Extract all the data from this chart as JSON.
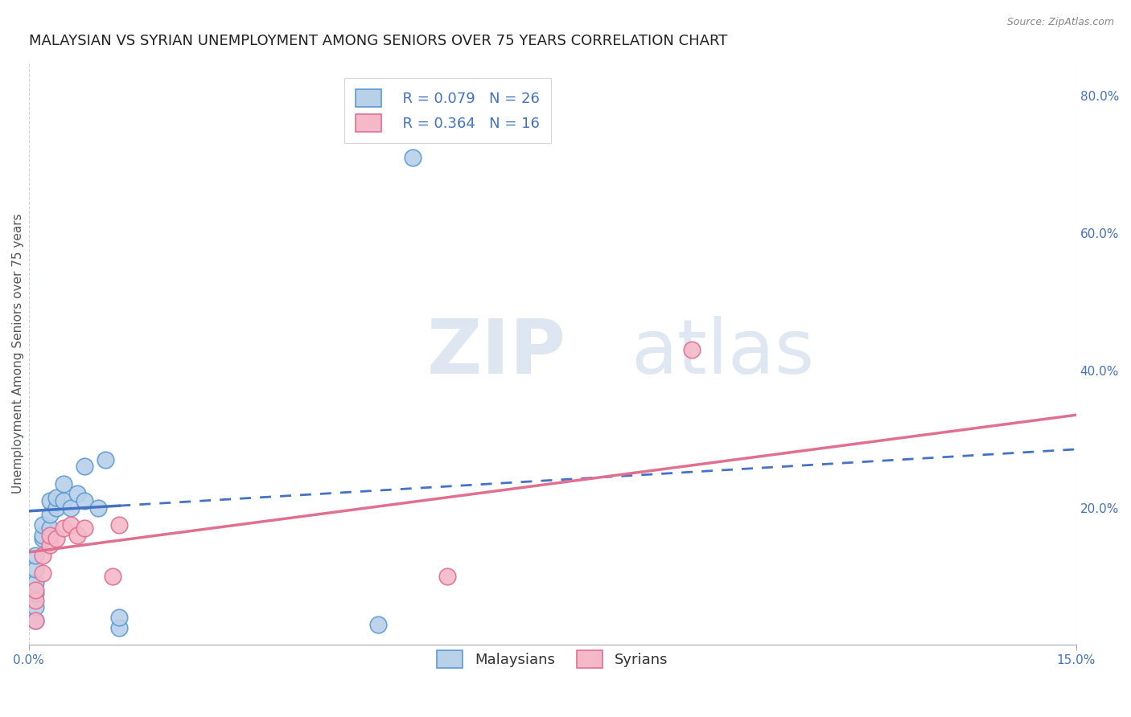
{
  "title": "MALAYSIAN VS SYRIAN UNEMPLOYMENT AMONG SENIORS OVER 75 YEARS CORRELATION CHART",
  "source": "Source: ZipAtlas.com",
  "ylabel": "Unemployment Among Seniors over 75 years",
  "watermark_zip": "ZIP",
  "watermark_atlas": "atlas",
  "xlim": [
    0.0,
    0.15
  ],
  "ylim": [
    0.0,
    0.85
  ],
  "xtick_labels": [
    "0.0%",
    "15.0%"
  ],
  "ytick_right_labels": [
    "80.0%",
    "60.0%",
    "40.0%",
    "20.0%"
  ],
  "ytick_right_values": [
    0.8,
    0.6,
    0.4,
    0.2
  ],
  "malaysian_color": "#b8d0e8",
  "malaysian_edge_color": "#5b9bd5",
  "syrian_color": "#f5b8c8",
  "syrian_edge_color": "#e07090",
  "trend_malaysian_color": "#4472c4",
  "trend_syrian_color": "#e07090",
  "r_malaysian": 0.079,
  "n_malaysian": 26,
  "r_syrian": 0.364,
  "n_syrian": 16,
  "malaysian_trend_x0": 0.0,
  "malaysian_trend_y0": 0.195,
  "malaysian_trend_x1": 0.15,
  "malaysian_trend_y1": 0.285,
  "malaysian_trend_solid_end": 0.013,
  "syrian_trend_x0": 0.0,
  "syrian_trend_y0": 0.135,
  "syrian_trend_x1": 0.15,
  "syrian_trend_y1": 0.335,
  "malaysian_x": [
    0.001,
    0.001,
    0.001,
    0.001,
    0.001,
    0.001,
    0.002,
    0.002,
    0.002,
    0.003,
    0.003,
    0.003,
    0.004,
    0.004,
    0.005,
    0.005,
    0.006,
    0.007,
    0.008,
    0.008,
    0.01,
    0.011,
    0.013,
    0.013,
    0.05,
    0.055
  ],
  "malaysian_y": [
    0.035,
    0.055,
    0.075,
    0.09,
    0.11,
    0.13,
    0.155,
    0.16,
    0.175,
    0.17,
    0.19,
    0.21,
    0.2,
    0.215,
    0.21,
    0.235,
    0.2,
    0.22,
    0.21,
    0.26,
    0.2,
    0.27,
    0.025,
    0.04,
    0.03,
    0.71
  ],
  "syrian_x": [
    0.001,
    0.001,
    0.001,
    0.002,
    0.002,
    0.003,
    0.003,
    0.004,
    0.005,
    0.006,
    0.007,
    0.008,
    0.012,
    0.013,
    0.06,
    0.095
  ],
  "syrian_y": [
    0.035,
    0.065,
    0.08,
    0.105,
    0.13,
    0.145,
    0.16,
    0.155,
    0.17,
    0.175,
    0.16,
    0.17,
    0.1,
    0.175,
    0.1,
    0.43
  ],
  "background_color": "#ffffff",
  "grid_color": "#c8d4e0",
  "title_fontsize": 13,
  "label_fontsize": 11,
  "tick_fontsize": 11,
  "legend_fontsize": 13,
  "marker_size": 220
}
